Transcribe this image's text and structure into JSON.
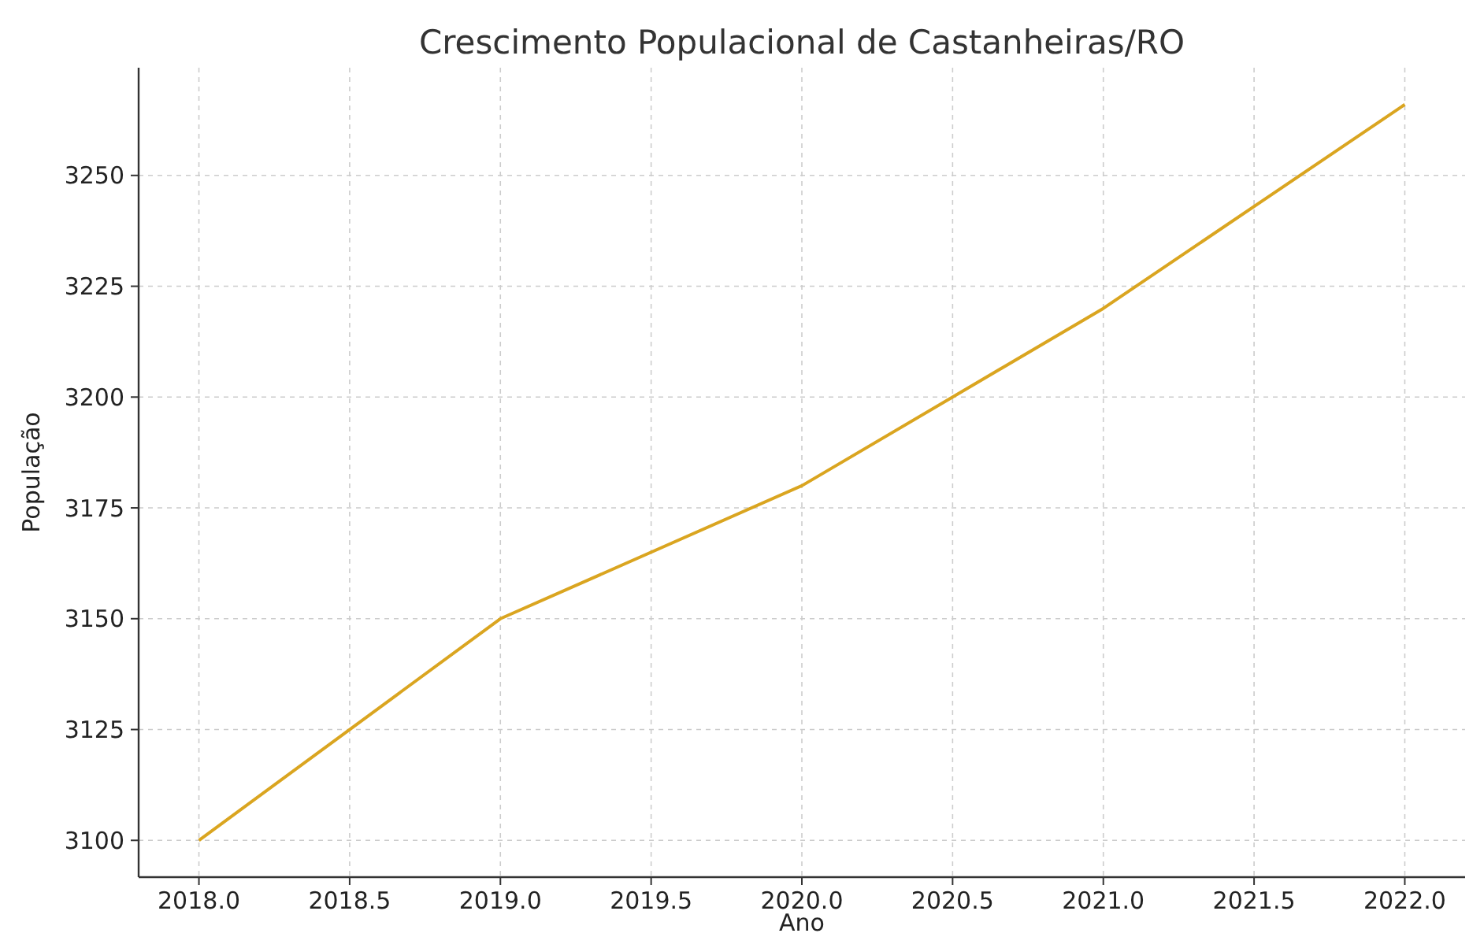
{
  "chart_data": {
    "type": "line",
    "title": "Crescimento Populacional de Castanheiras/RO",
    "xlabel": "Ano",
    "ylabel": "População",
    "x": [
      2018,
      2019,
      2020,
      2021,
      2022
    ],
    "series": [
      {
        "color": "#daa520",
        "values": [
          3100,
          3150,
          3180,
          3220,
          3266
        ]
      }
    ],
    "xlim": [
      2017.8,
      2022.2
    ],
    "ylim": [
      3091.7,
      3274.3
    ],
    "xticks": [
      {
        "value": 2018,
        "label": "2018.0"
      },
      {
        "value": 2018.5,
        "label": "2018.5"
      },
      {
        "value": 2019,
        "label": "2019.0"
      },
      {
        "value": 2019.5,
        "label": "2019.5"
      },
      {
        "value": 2020,
        "label": "2020.0"
      },
      {
        "value": 2020.5,
        "label": "2020.5"
      },
      {
        "value": 2021,
        "label": "2021.0"
      },
      {
        "value": 2021.5,
        "label": "2021.5"
      },
      {
        "value": 2022,
        "label": "2022.0"
      }
    ],
    "yticks": [
      3100,
      3125,
      3150,
      3175,
      3200,
      3225,
      3250
    ],
    "grid": true,
    "line_style": "solid",
    "marker": "none"
  }
}
